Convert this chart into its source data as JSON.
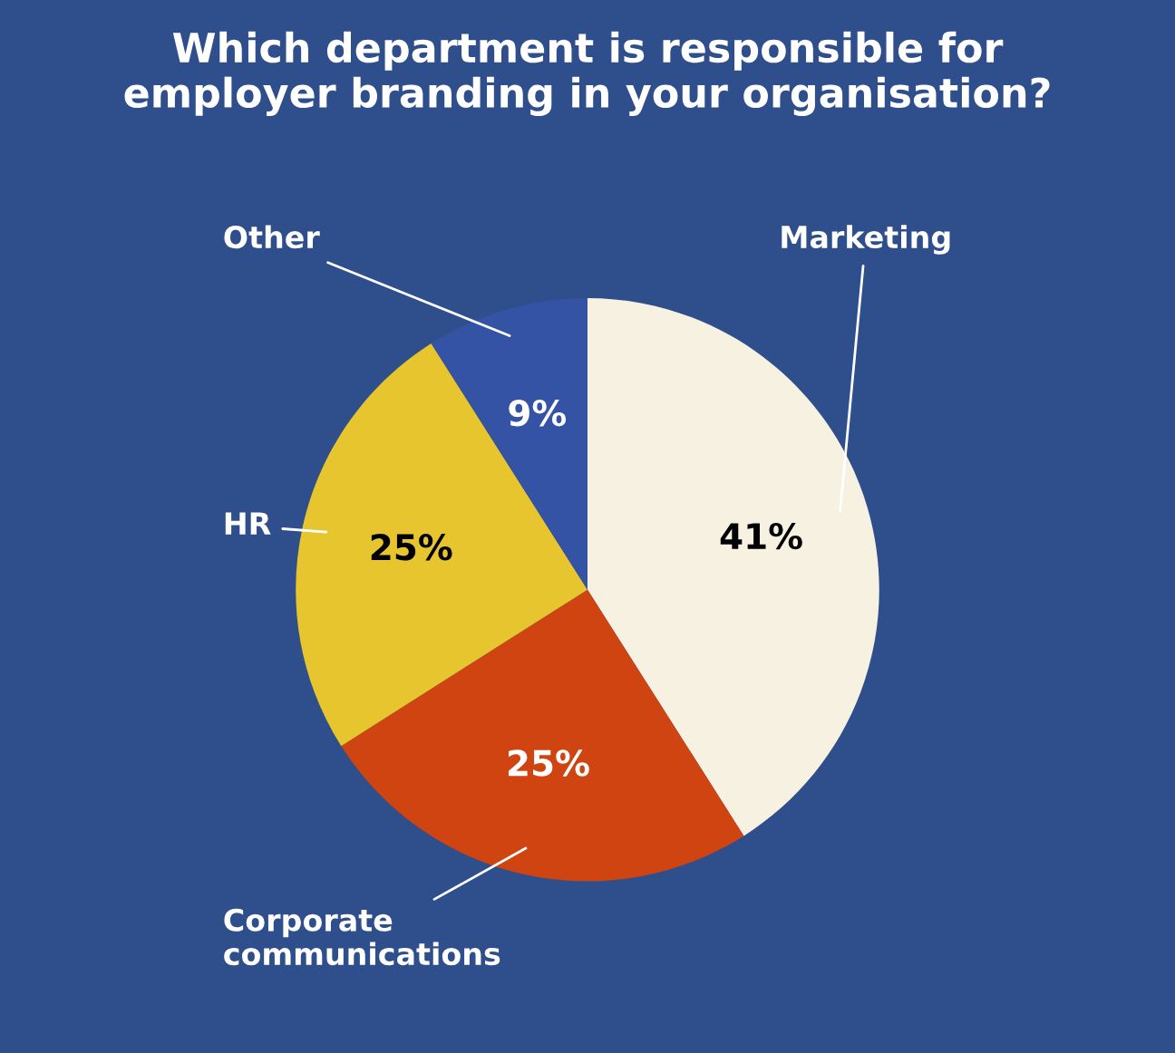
{
  "chart_data": {
    "type": "pie",
    "title": "Which department is responsible for\nemployer branding in your organisation?",
    "categories": [
      "Marketing",
      "Corporate\ncommunications",
      "HR",
      "Other"
    ],
    "values": [
      41,
      25,
      25,
      9
    ],
    "colors": [
      "#f6f1e0",
      "#cf4410",
      "#e6c52e",
      "#3453a4"
    ],
    "value_labels": [
      "41%",
      "25%",
      "25%",
      "9%"
    ]
  }
}
